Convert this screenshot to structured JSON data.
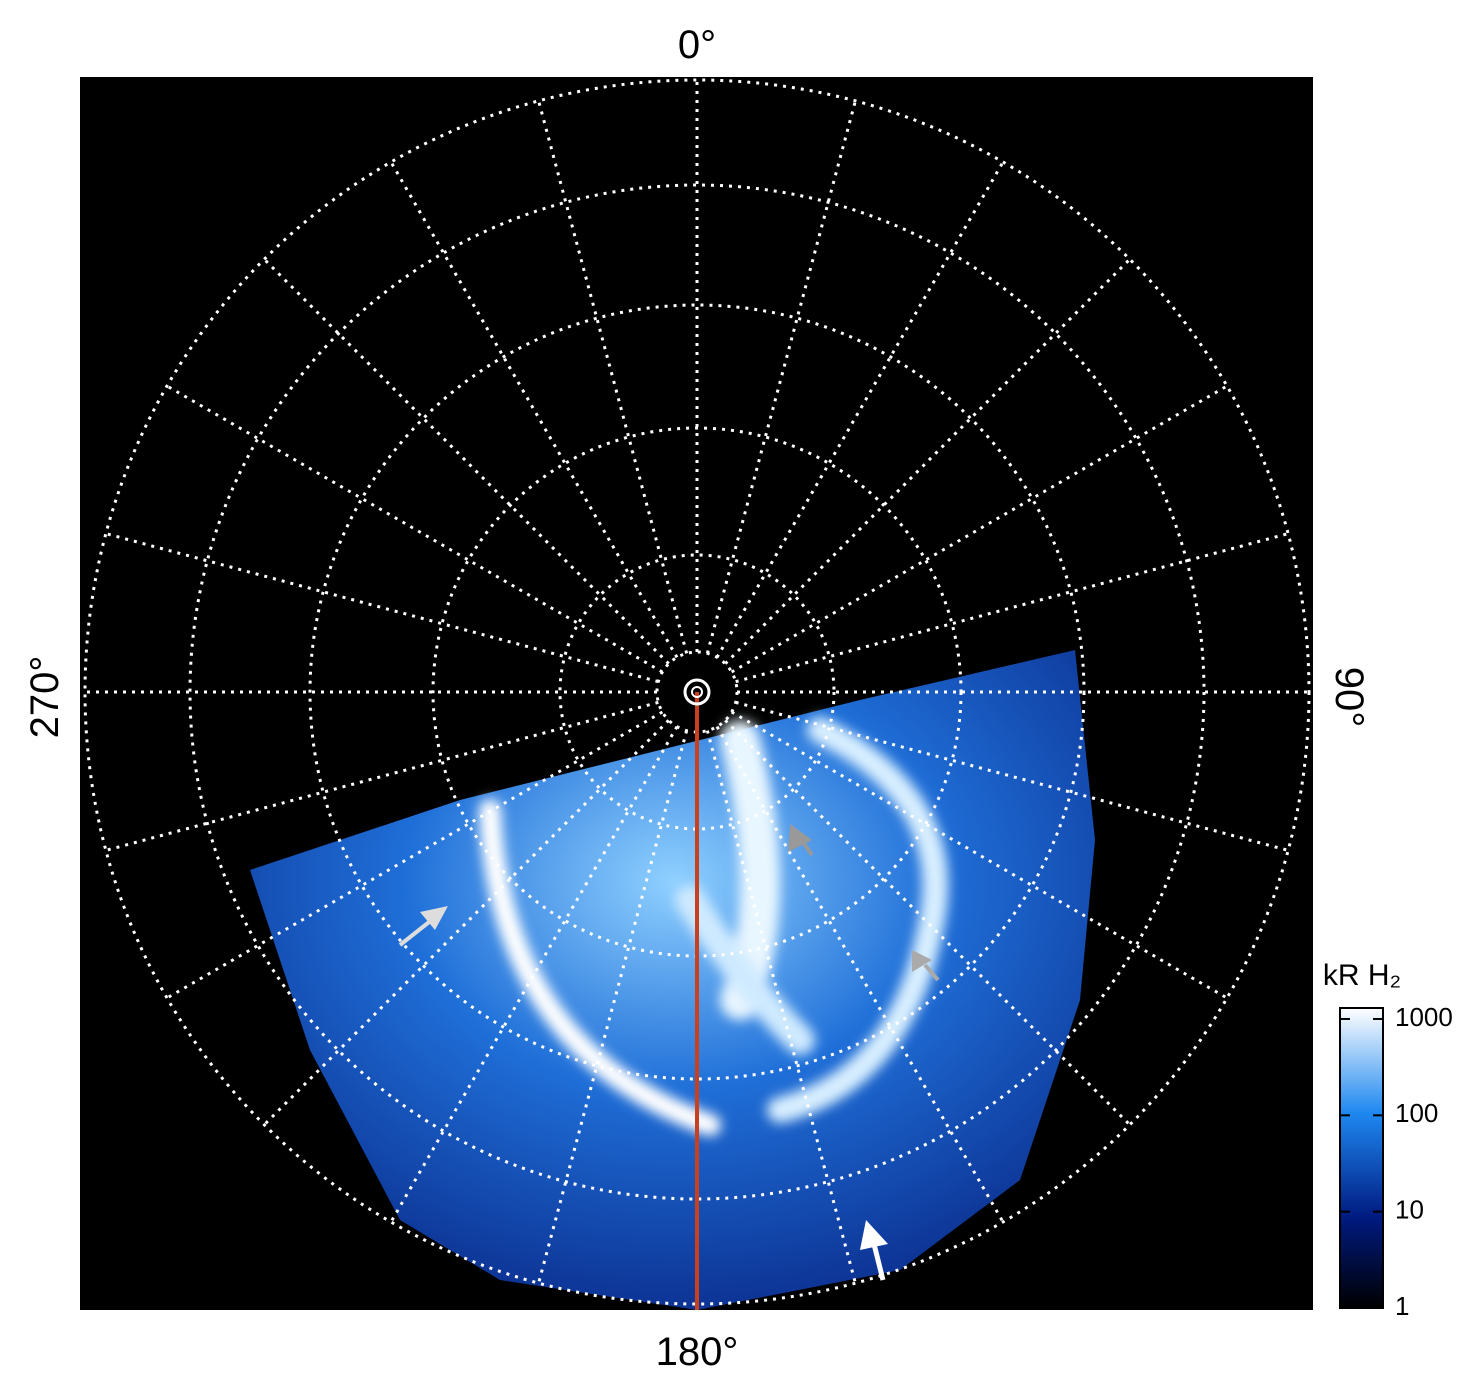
{
  "chart_data": {
    "type": "polar_image",
    "azimuth_labels": {
      "top": "0°",
      "right": "90°",
      "bottom": "180°",
      "left": "270°"
    },
    "colorbar": {
      "label": "kR H₂",
      "log": true,
      "lim": [
        1,
        1300
      ],
      "ticks": [
        1,
        10,
        100,
        1000
      ]
    }
  }
}
